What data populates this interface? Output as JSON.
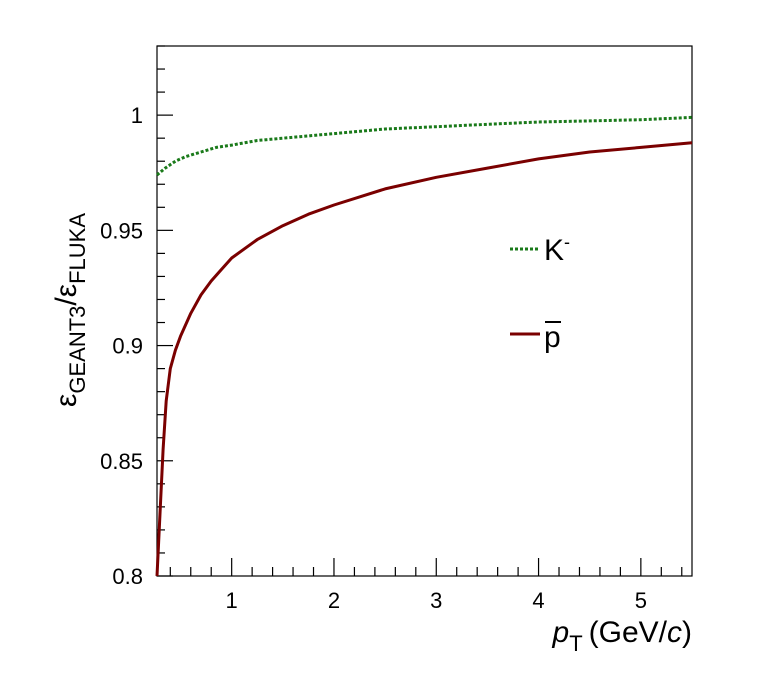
{
  "chart_data": {
    "type": "line",
    "xlabel": {
      "main": "p",
      "sub": "T",
      "unit_open": "(GeV/",
      "unit_var": "c",
      "unit_close": ")"
    },
    "ylabel": {
      "num": "ε",
      "num_sub": "GEANT3",
      "den": "ε",
      "den_sub": "FLUKA"
    },
    "xlim": [
      0.27,
      5.5
    ],
    "ylim": [
      0.8,
      1.03
    ],
    "x_ticks": [
      1,
      2,
      3,
      4,
      5
    ],
    "x_tick_labels": [
      "1",
      "2",
      "3",
      "4",
      "5"
    ],
    "y_ticks": [
      0.8,
      0.85,
      0.9,
      0.95,
      1.0
    ],
    "y_tick_labels": [
      "0.8",
      "0.85",
      "0.9",
      "0.95",
      "1"
    ],
    "grid": false,
    "legend_position": "center-right",
    "series": [
      {
        "name": "K-",
        "legend_base": "K",
        "legend_sup": "-",
        "color": "#1a7a1a",
        "style": "dotted",
        "points": [
          [
            0.27,
            0.974
          ],
          [
            0.35,
            0.977
          ],
          [
            0.45,
            0.98
          ],
          [
            0.55,
            0.982
          ],
          [
            0.7,
            0.984
          ],
          [
            0.85,
            0.986
          ],
          [
            1.0,
            0.987
          ],
          [
            1.25,
            0.989
          ],
          [
            1.5,
            0.99
          ],
          [
            2.0,
            0.992
          ],
          [
            2.5,
            0.994
          ],
          [
            3.0,
            0.995
          ],
          [
            3.5,
            0.996
          ],
          [
            4.0,
            0.997
          ],
          [
            4.5,
            0.9975
          ],
          [
            5.0,
            0.998
          ],
          [
            5.5,
            0.999
          ]
        ]
      },
      {
        "name": "p̄",
        "legend_label": "p",
        "legend_overline": true,
        "color": "#7a0000",
        "style": "solid",
        "points": [
          [
            0.27,
            0.8
          ],
          [
            0.3,
            0.828
          ],
          [
            0.33,
            0.855
          ],
          [
            0.36,
            0.876
          ],
          [
            0.4,
            0.89
          ],
          [
            0.45,
            0.898
          ],
          [
            0.5,
            0.904
          ],
          [
            0.6,
            0.914
          ],
          [
            0.7,
            0.922
          ],
          [
            0.8,
            0.928
          ],
          [
            0.9,
            0.933
          ],
          [
            1.0,
            0.938
          ],
          [
            1.25,
            0.946
          ],
          [
            1.5,
            0.952
          ],
          [
            1.75,
            0.957
          ],
          [
            2.0,
            0.961
          ],
          [
            2.5,
            0.968
          ],
          [
            3.0,
            0.973
          ],
          [
            3.5,
            0.977
          ],
          [
            4.0,
            0.981
          ],
          [
            4.5,
            0.984
          ],
          [
            5.0,
            0.986
          ],
          [
            5.5,
            0.988
          ]
        ]
      }
    ]
  }
}
